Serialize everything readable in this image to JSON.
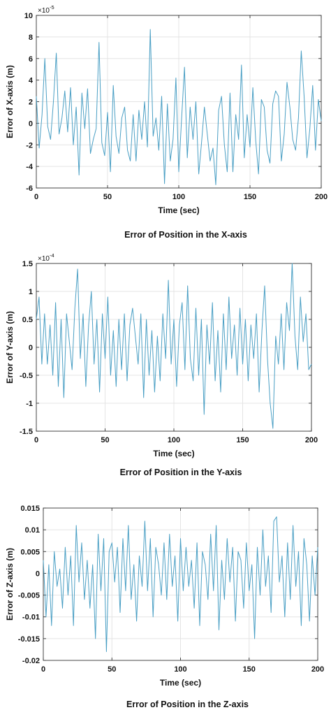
{
  "chart_data": [
    {
      "type": "line",
      "caption": "Error of Position in the X-axis",
      "xlabel": "Time (sec)",
      "ylabel": "Error of X-axis (m)",
      "exponent": {
        "base": "×10",
        "power": "-5"
      },
      "xlim": [
        0,
        200
      ],
      "ylim": [
        -6,
        10
      ],
      "xticks": [
        0,
        50,
        100,
        150,
        200
      ],
      "yticks": [
        -6,
        -4,
        -2,
        0,
        2,
        4,
        6,
        8,
        10
      ],
      "grid": true,
      "color": "#4a9fc4",
      "series": [
        {
          "x": [
            0,
            2,
            4,
            6,
            8,
            10,
            12,
            14,
            16,
            18,
            20,
            22,
            24,
            26,
            28,
            30,
            32,
            34,
            36,
            38,
            40,
            42,
            44,
            46,
            48,
            50,
            52,
            54,
            56,
            58,
            60,
            62,
            64,
            66,
            68,
            70,
            72,
            74,
            76,
            78,
            80,
            82,
            84,
            86,
            88,
            90,
            92,
            94,
            96,
            98,
            100,
            102,
            104,
            106,
            108,
            110,
            112,
            114,
            116,
            118,
            120,
            122,
            124,
            126,
            128,
            130,
            132,
            134,
            136,
            138,
            140,
            142,
            144,
            146,
            148,
            150,
            152,
            154,
            156,
            158,
            160,
            162,
            164,
            166,
            168,
            170,
            172,
            174,
            176,
            178,
            180,
            182,
            184,
            186,
            188,
            190,
            192,
            194,
            196,
            198,
            200
          ],
          "y": [
            2.5,
            -2.3,
            0.8,
            6,
            -0.3,
            -1.5,
            2,
            6.5,
            -1,
            0.5,
            3,
            -0.8,
            3.3,
            -2,
            1.5,
            -4.8,
            2.8,
            -0.5,
            3.2,
            -2.8,
            -1.5,
            -0.5,
            7.5,
            -1.8,
            -3,
            1,
            -4.5,
            3.5,
            -1.2,
            -2.8,
            0.5,
            1.5,
            -2.5,
            -3.5,
            0.8,
            -3.5,
            1.2,
            -1.5,
            2,
            -2.2,
            8.7,
            -1.2,
            0.5,
            -2.5,
            2.5,
            -5.6,
            1.8,
            -3.5,
            -1.5,
            4.2,
            -4.5,
            0.5,
            5.2,
            -3.2,
            1.5,
            -1.5,
            2,
            -4.7,
            -1.8,
            1.5,
            -1,
            -3.5,
            -2.3,
            -5.7,
            1.2,
            2.5,
            -2,
            -4.5,
            2.8,
            -4.5,
            0.8,
            -1.5,
            5.4,
            -3.2,
            0.8,
            -2.2,
            3.3,
            -1.6,
            -4.7,
            2.2,
            1.5,
            -2.5,
            -3.7,
            1.8,
            3,
            2.5,
            -3.5,
            -1,
            3.8,
            1.5,
            -1.5,
            -2.5,
            0.5,
            6.7,
            2.5,
            -3.2,
            -0.5,
            3.5,
            -2.5,
            2.2,
            0.2
          ]
        }
      ]
    },
    {
      "type": "line",
      "caption": "Error of Position in the Y-axis",
      "xlabel": "Time (sec)",
      "ylabel": "Error of Y-axis (m)",
      "exponent": {
        "base": "×10",
        "power": "-4"
      },
      "xlim": [
        0,
        200
      ],
      "ylim": [
        -1.5,
        1.5
      ],
      "xticks": [
        0,
        50,
        100,
        150,
        200
      ],
      "yticks": [
        -1.5,
        -1,
        -0.5,
        0,
        0.5,
        1,
        1.5
      ],
      "ytickLabels": [
        "-1.5",
        "-1",
        "-0.5",
        "0",
        "0.5",
        "1",
        "1.5"
      ],
      "grid": true,
      "color": "#4a9fc4",
      "series": [
        {
          "x": [
            0,
            2,
            4,
            6,
            8,
            10,
            12,
            14,
            16,
            18,
            20,
            22,
            24,
            26,
            28,
            30,
            32,
            34,
            36,
            38,
            40,
            42,
            44,
            46,
            48,
            50,
            52,
            54,
            56,
            58,
            60,
            62,
            64,
            66,
            68,
            70,
            72,
            74,
            76,
            78,
            80,
            82,
            84,
            86,
            88,
            90,
            92,
            94,
            96,
            98,
            100,
            102,
            104,
            106,
            108,
            110,
            112,
            114,
            116,
            118,
            120,
            122,
            124,
            126,
            128,
            130,
            132,
            134,
            136,
            138,
            140,
            142,
            144,
            146,
            148,
            150,
            152,
            154,
            156,
            158,
            160,
            162,
            164,
            166,
            168,
            170,
            172,
            174,
            176,
            178,
            180,
            182,
            184,
            186,
            188,
            190,
            192,
            194,
            196,
            198,
            200
          ],
          "y": [
            0.5,
            0.9,
            -0.3,
            0.6,
            -0.3,
            0.4,
            -0.5,
            0.8,
            -0.7,
            0.5,
            -0.9,
            0.6,
            0.1,
            -0.4,
            0.7,
            1.4,
            -0.2,
            0.6,
            -0.7,
            0.4,
            1.0,
            -0.3,
            0.5,
            -0.8,
            0.6,
            -0.2,
            0.9,
            -0.5,
            0.3,
            -0.7,
            0.5,
            -0.4,
            0.6,
            -0.6,
            0.4,
            0.7,
            0.2,
            -0.3,
            0.6,
            -0.9,
            0.5,
            -0.5,
            0.3,
            -0.8,
            0.2,
            -0.6,
            0.6,
            -0.2,
            1.2,
            -0.3,
            0.5,
            -0.7,
            0.4,
            0.8,
            -0.4,
            1.1,
            -0.2,
            -0.6,
            0.7,
            -0.5,
            0.5,
            -1.2,
            0.4,
            -0.3,
            0.8,
            -0.6,
            0.3,
            -0.8,
            0.6,
            -0.4,
            0.9,
            -0.2,
            0.4,
            -0.5,
            0.7,
            -0.3,
            0.5,
            -0.6,
            0.4,
            -0.2,
            0.6,
            -0.8,
            0.3,
            1.1,
            -0.2,
            -1.0,
            -1.45,
            0.2,
            -0.3,
            0.6,
            -0.4,
            0.8,
            0.3,
            1.5,
            0.2,
            -0.4,
            0.9,
            0.1,
            0.6,
            -0.4,
            -0.3
          ]
        }
      ]
    },
    {
      "type": "line",
      "caption": "Error of Position in the Z-axis",
      "xlabel": "Time (sec)",
      "ylabel": "Error of Z-axis (m)",
      "exponent": null,
      "xlim": [
        0,
        200
      ],
      "ylim": [
        -0.02,
        0.015
      ],
      "xticks": [
        0,
        50,
        100,
        150,
        200
      ],
      "yticks": [
        -0.02,
        -0.015,
        -0.01,
        -0.005,
        0,
        0.005,
        0.01,
        0.015
      ],
      "ytickLabels": [
        "-0.02",
        "-0.015",
        "-0.01",
        "-0.005",
        "0",
        "0.005",
        "0.01",
        "0.015"
      ],
      "grid": true,
      "color": "#4a9fc4",
      "series": [
        {
          "x": [
            0,
            2,
            4,
            6,
            8,
            10,
            12,
            14,
            16,
            18,
            20,
            22,
            24,
            26,
            28,
            30,
            32,
            34,
            36,
            38,
            40,
            42,
            44,
            46,
            48,
            50,
            52,
            54,
            56,
            58,
            60,
            62,
            64,
            66,
            68,
            70,
            72,
            74,
            76,
            78,
            80,
            82,
            84,
            86,
            88,
            90,
            92,
            94,
            96,
            98,
            100,
            102,
            104,
            106,
            108,
            110,
            112,
            114,
            116,
            118,
            120,
            122,
            124,
            126,
            128,
            130,
            132,
            134,
            136,
            138,
            140,
            142,
            144,
            146,
            148,
            150,
            152,
            154,
            156,
            158,
            160,
            162,
            164,
            166,
            168,
            170,
            172,
            174,
            176,
            178,
            180,
            182,
            184,
            186,
            188,
            190,
            192,
            194,
            196,
            198,
            200
          ],
          "y": [
            0.003,
            -0.01,
            0.002,
            -0.012,
            0.005,
            -0.003,
            0.001,
            -0.008,
            0.006,
            -0.005,
            0.004,
            -0.012,
            0.011,
            -0.002,
            0.007,
            -0.006,
            0.003,
            -0.008,
            0.002,
            -0.015,
            0.009,
            -0.004,
            0.008,
            -0.018,
            0.005,
            0.007,
            -0.002,
            0.006,
            -0.009,
            0.008,
            -0.004,
            0.011,
            -0.006,
            0.002,
            -0.011,
            0.004,
            -0.003,
            0.012,
            -0.004,
            0.008,
            -0.01,
            0.006,
            0.002,
            -0.005,
            0.007,
            -0.006,
            0.009,
            -0.003,
            0.004,
            -0.011,
            0.008,
            -0.004,
            0.006,
            -0.003,
            0.003,
            -0.008,
            0.007,
            -0.012,
            0.005,
            0.002,
            -0.006,
            0.009,
            -0.004,
            0.011,
            -0.013,
            0.003,
            -0.006,
            0.008,
            -0.002,
            0.006,
            -0.011,
            0.005,
            0.003,
            -0.008,
            0.007,
            -0.004,
            0.002,
            -0.015,
            0.006,
            -0.005,
            0.01,
            -0.003,
            0.004,
            -0.009,
            0.012,
            0.013,
            -0.002,
            0.004,
            -0.01,
            0.007,
            -0.006,
            0.011,
            -0.003,
            0.005,
            -0.012,
            0.008,
            0.002,
            -0.011,
            0.004,
            -0.005,
            0.006
          ]
        }
      ]
    }
  ]
}
